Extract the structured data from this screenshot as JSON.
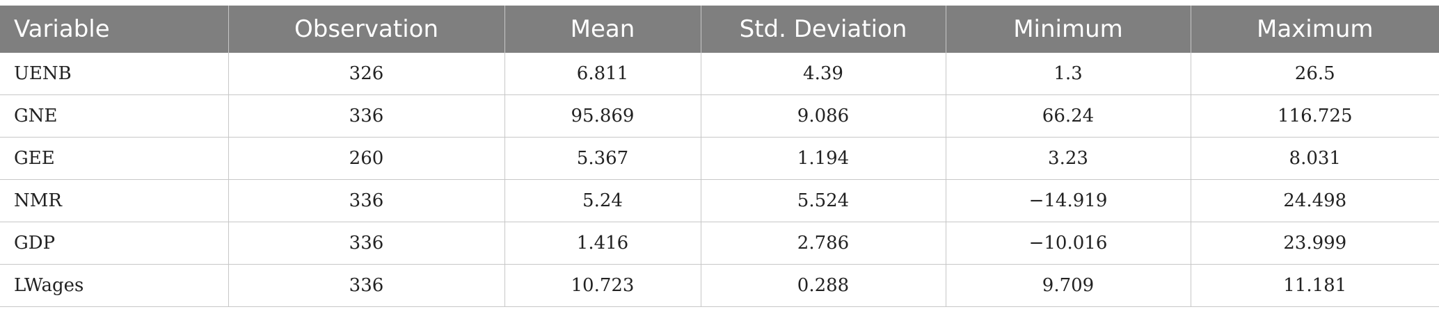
{
  "table": {
    "headers": [
      "Variable",
      "Observation",
      "Mean",
      "Std. Deviation",
      "Minimum",
      "Maximum"
    ],
    "rows": [
      [
        "UENB",
        "326",
        "6.811",
        "4.39",
        "1.3",
        "26.5"
      ],
      [
        "GNE",
        "336",
        "95.869",
        "9.086",
        "66.24",
        "116.725"
      ],
      [
        "GEE",
        "260",
        "5.367",
        "1.194",
        "3.23",
        "8.031"
      ],
      [
        "NMR",
        "336",
        "5.24",
        "5.524",
        "−14.919",
        "24.498"
      ],
      [
        "GDP",
        "336",
        "1.416",
        "2.786",
        "−10.016",
        "23.999"
      ],
      [
        "LWages",
        "336",
        "10.723",
        "0.288",
        "9.709",
        "11.181"
      ]
    ]
  },
  "colors": {
    "header_bg": "#7f7f7f",
    "header_text": "#ffffff",
    "grid_line": "#c7c7c7",
    "cell_text": "#222222"
  }
}
